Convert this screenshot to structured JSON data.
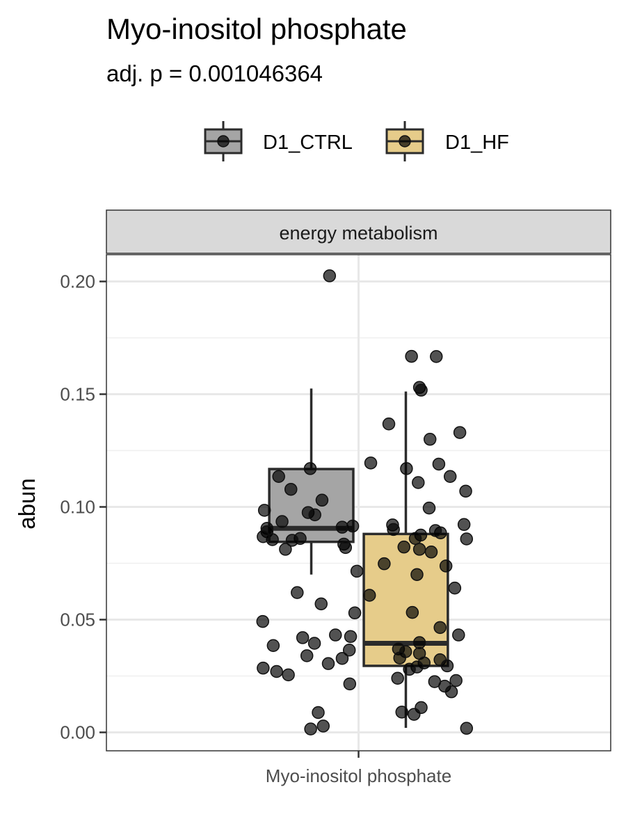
{
  "chart_data": {
    "type": "box",
    "title": "Myo-inositol phosphate",
    "subtitle": "adj. p = 0.001046364",
    "facet_label": "energy metabolism",
    "xlabel": "",
    "ylabel": "abun",
    "categories": [
      "Myo-inositol phosphate"
    ],
    "ylim": [
      -0.008,
      0.212
    ],
    "yticks": [
      0.0,
      0.05,
      0.1,
      0.15,
      0.2
    ],
    "ytick_labels": [
      "0.00",
      "0.05",
      "0.10",
      "0.15",
      "0.20"
    ],
    "grid": true,
    "legend": {
      "position": "top",
      "entries": [
        "D1_CTRL",
        "D1_HF"
      ]
    },
    "series": [
      {
        "name": "D1_CTRL",
        "color": "#a5a5a5",
        "box": {
          "whisker_low": 0.07,
          "q1": 0.0845,
          "median": 0.0905,
          "q3": 0.1168,
          "whisker_high": 0.1525
        },
        "points": [
          [
            -0.069,
            0.2025
          ],
          [
            0.126,
            0.1668
          ],
          [
            0.185,
            0.1667
          ],
          [
            0.145,
            0.153
          ],
          [
            0.191,
            0.119
          ],
          [
            -0.115,
            0.117
          ],
          [
            0.114,
            0.117
          ],
          [
            -0.224,
            0.0985
          ],
          [
            -0.12,
            0.0975
          ],
          [
            -0.104,
            0.0965
          ],
          [
            -0.218,
            0.0905
          ],
          [
            -0.182,
            0.0935
          ],
          [
            -0.039,
            0.091
          ],
          [
            -0.218,
            0.089
          ],
          [
            0.195,
            0.0885
          ],
          [
            0.148,
            0.0875
          ],
          [
            0.135,
            0.086
          ],
          [
            -0.139,
            0.086
          ],
          [
            -0.205,
            0.0855
          ],
          [
            -0.158,
            0.0852
          ],
          [
            -0.035,
            0.0835
          ],
          [
            -0.174,
            0.0812
          ],
          [
            0.145,
            0.0812
          ],
          [
            0.061,
            0.0748
          ],
          [
            0.208,
            0.0738
          ],
          [
            0.139,
            0.07
          ]
        ]
      },
      {
        "name": "D1_HF",
        "color": "#e6cc8a",
        "box": {
          "whisker_low": 0.002,
          "q1": 0.0295,
          "median": 0.0395,
          "q3": 0.088,
          "whisker_high": 0.1512
        },
        "points": [
          [
            0.149,
            0.1518
          ],
          [
            0.072,
            0.1368
          ],
          [
            0.241,
            0.133
          ],
          [
            0.17,
            0.13
          ],
          [
            0.029,
            0.1195
          ],
          [
            -0.19,
            0.1135
          ],
          [
            0.218,
            0.1135
          ],
          [
            0.142,
            0.1108
          ],
          [
            -0.161,
            0.1078
          ],
          [
            0.255,
            0.107
          ],
          [
            -0.087,
            0.103
          ],
          [
            0.168,
            0.0995
          ],
          [
            0.081,
            0.092
          ],
          [
            0.251,
            0.0922
          ],
          [
            -0.014,
            0.0915
          ],
          [
            0.083,
            0.09
          ],
          [
            -0.227,
            0.0868
          ],
          [
            0.183,
            0.0895
          ],
          [
            0.257,
            0.0858
          ],
          [
            -0.031,
            0.082
          ],
          [
            0.108,
            0.0822
          ],
          [
            0.173,
            0.08
          ],
          [
            -0.004,
            0.0715
          ],
          [
            0.229,
            0.064
          ],
          [
            -0.146,
            0.062
          ],
          [
            0.026,
            0.0608
          ],
          [
            -0.089,
            0.057
          ],
          [
            -0.009,
            0.053
          ],
          [
            0.128,
            0.0532
          ],
          [
            -0.228,
            0.0492
          ],
          [
            0.194,
            0.0465
          ],
          [
            -0.055,
            0.0432
          ],
          [
            0.238,
            0.0432
          ],
          [
            -0.133,
            0.042
          ],
          [
            -0.019,
            0.0425
          ],
          [
            0.145,
            0.0398
          ],
          [
            -0.105,
            0.0395
          ],
          [
            -0.203,
            0.0385
          ],
          [
            0.095,
            0.037
          ],
          [
            -0.022,
            0.0365
          ],
          [
            0.112,
            0.0358
          ],
          [
            0.145,
            0.035
          ],
          [
            -0.123,
            0.034
          ],
          [
            0.098,
            0.033
          ],
          [
            -0.039,
            0.0328
          ],
          [
            0.194,
            0.0322
          ],
          [
            0.156,
            0.0308
          ],
          [
            -0.072,
            0.0305
          ],
          [
            0.211,
            0.0295
          ],
          [
            0.139,
            0.029
          ],
          [
            -0.227,
            0.0285
          ],
          [
            0.121,
            0.028
          ],
          [
            -0.195,
            0.027
          ],
          [
            -0.167,
            0.0255
          ],
          [
            0.232,
            0.023
          ],
          [
            0.181,
            0.0225
          ],
          [
            -0.021,
            0.0215
          ],
          [
            0.205,
            0.0205
          ],
          [
            0.221,
            0.018
          ],
          [
            0.149,
            0.011
          ],
          [
            -0.096,
            0.0088
          ],
          [
            0.103,
            0.009
          ],
          [
            0.132,
            0.008
          ],
          [
            -0.084,
            0.0028
          ],
          [
            -0.114,
            0.0015
          ],
          [
            0.257,
            0.0018
          ],
          [
            0.093,
            0.024
          ]
        ]
      }
    ]
  }
}
